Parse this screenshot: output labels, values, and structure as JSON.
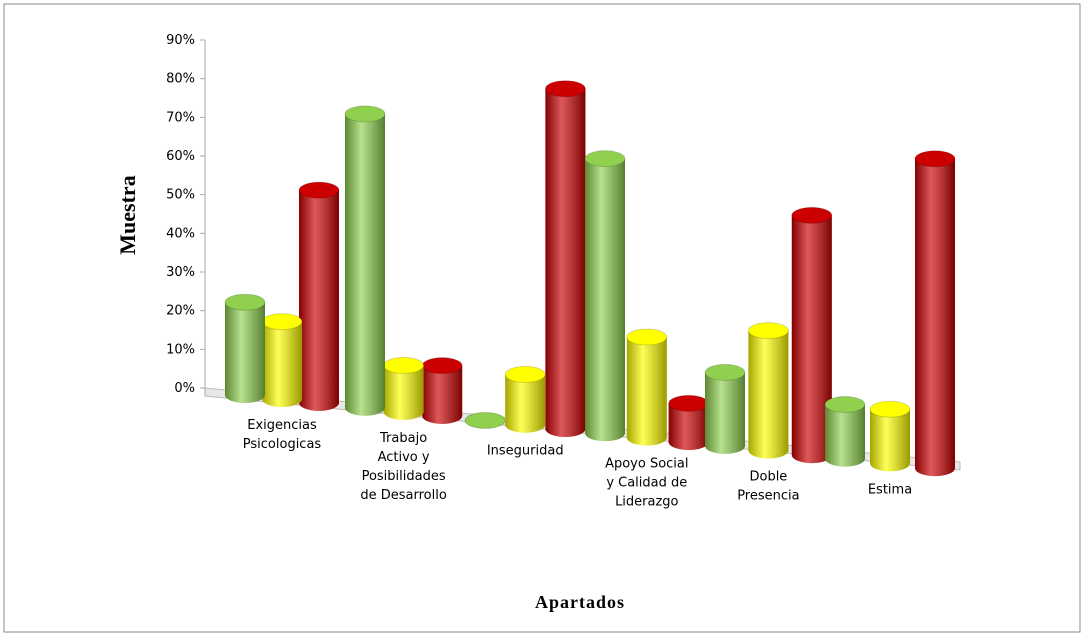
{
  "chart_data": {
    "type": "bar3d",
    "y_label": "Muestra",
    "x_label": "Apartados",
    "categories": [
      "Exigencias Psicologicas",
      "Trabajo Activo y Posibilidades de Desarrollo",
      "Inseguridad",
      "Apoyo Social y Calidad de Liderazgo",
      "Doble Presencia",
      "Estima"
    ],
    "series": [
      {
        "color": "#8fd14f",
        "values": [
          24,
          76,
          0,
          71,
          19,
          14
        ]
      },
      {
        "color": "#ffff00",
        "values": [
          20,
          12,
          13,
          26,
          31,
          14
        ]
      },
      {
        "color": "#cc0000",
        "values": [
          55,
          13,
          88,
          10,
          62,
          80
        ]
      }
    ],
    "ylim": [
      0,
      90
    ],
    "yticks": [
      {
        "value": 0,
        "label": "0%"
      },
      {
        "value": 10,
        "label": "10%"
      },
      {
        "value": 20,
        "label": "20%"
      },
      {
        "value": 30,
        "label": "30%"
      },
      {
        "value": 40,
        "label": "40%"
      },
      {
        "value": 50,
        "label": "50%"
      },
      {
        "value": 60,
        "label": "60%"
      },
      {
        "value": 70,
        "label": "70%"
      },
      {
        "value": 80,
        "label": "80%"
      },
      {
        "value": 90,
        "label": "90%"
      }
    ]
  }
}
